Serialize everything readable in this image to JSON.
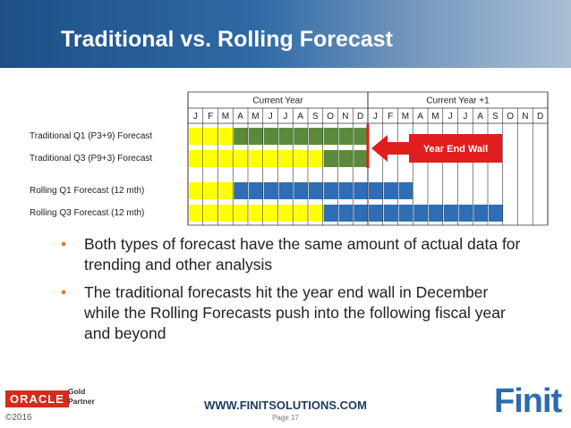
{
  "header": {
    "title": "Traditional vs. Rolling Forecast"
  },
  "table": {
    "year_headers": [
      "Current Year",
      "Current Year +1"
    ],
    "months": [
      "J",
      "F",
      "M",
      "A",
      "M",
      "J",
      "J",
      "A",
      "S",
      "O",
      "N",
      "D",
      "J",
      "F",
      "M",
      "A",
      "M",
      "J",
      "J",
      "A",
      "S",
      "O",
      "N",
      "D"
    ],
    "rows": [
      "Traditional Q1 (P3+9) Forecast",
      "Traditional Q3 (P9+3) Forecast",
      "Rolling Q1 Forecast (12 mth)",
      "Rolling Q3 Forecast (12 mth)"
    ]
  },
  "callout": "Year End Wall",
  "bullets": [
    "Both types of forecast have the same amount of actual data for trending and other analysis",
    "The traditional forecasts hit the year end wall in December while the Rolling Forecasts push into the following fiscal year and beyond"
  ],
  "footer": {
    "oracle": "ORACLE",
    "partner": [
      "Gold",
      "Partner"
    ],
    "website": "WWW.FINITSOLUTIONS.COM",
    "page": "Page 17",
    "copyright": "©2016",
    "logo": "Finit"
  }
}
